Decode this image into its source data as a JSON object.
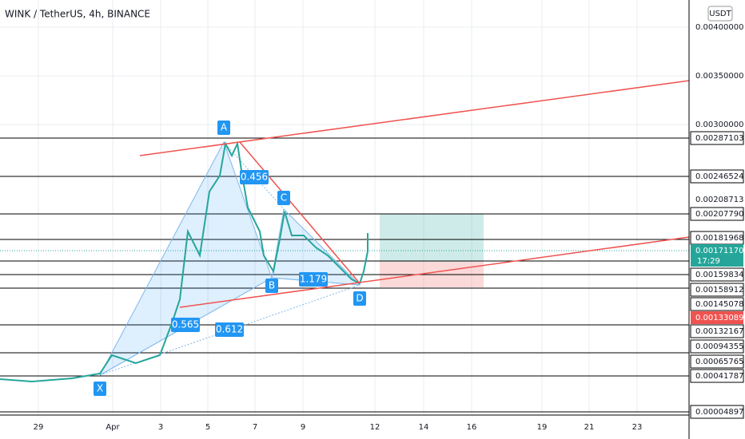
{
  "header": {
    "title": "WINK / TetherUS, 4h, BINANCE",
    "currency": "USDT"
  },
  "price_axis": [
    "0.00400000",
    "0.00350000",
    "0.00300000",
    "0.00287103",
    "0.00246524",
    "0.00208713",
    "0.00207790",
    "0.00181968",
    "0.00171170",
    "0.00159834",
    "0.00158912",
    "0.00145078",
    "0.00133089",
    "0.00132167",
    "0.00094355",
    "0.00065765",
    "0.00041787",
    "0.00004897"
  ],
  "countdown": "17:29",
  "date_axis": [
    "29",
    "Apr",
    "3",
    "5",
    "7",
    "9",
    "12",
    "14",
    "16",
    "19",
    "21",
    "23"
  ],
  "pattern_points": [
    "X",
    "A",
    "B",
    "C",
    "D"
  ],
  "ratios": [
    "0.456",
    "1.179",
    "0.565",
    "0.612"
  ]
}
